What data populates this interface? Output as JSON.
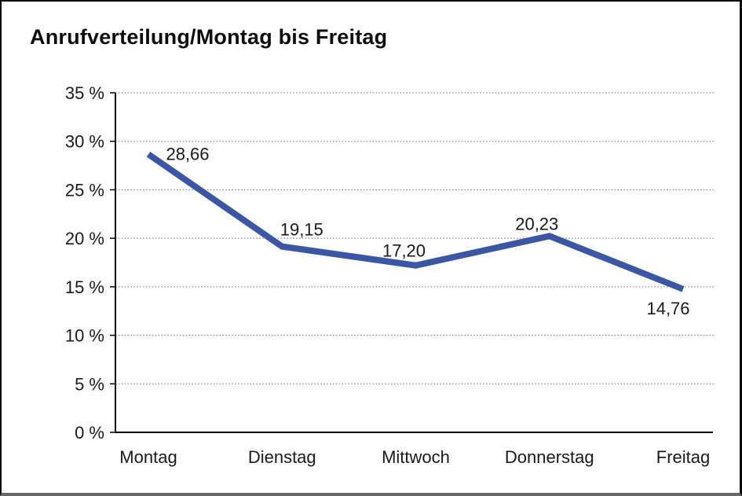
{
  "chart_data": {
    "type": "line",
    "title": "Anrufverteilung/Montag bis Freitag",
    "categories": [
      "Montag",
      "Dienstag",
      "Mittwoch",
      "Donnerstag",
      "Freitag"
    ],
    "values": [
      28.66,
      19.15,
      17.2,
      20.23,
      14.76
    ],
    "value_labels": [
      "28,66",
      "19,15",
      "17,20",
      "20,23",
      "14,76"
    ],
    "series": [
      {
        "name": "Anrufverteilung",
        "values": [
          28.66,
          19.15,
          17.2,
          20.23,
          14.76
        ]
      }
    ],
    "xlabel": "",
    "ylabel": "",
    "ylim": [
      0,
      35
    ],
    "y_ticks": [
      0,
      5,
      10,
      15,
      20,
      25,
      30,
      35
    ],
    "y_tick_labels": [
      "0 %",
      "5 %",
      "10 %",
      "15 %",
      "20 %",
      "25 %",
      "30 %",
      "35 %"
    ],
    "grid": "horizontal-dotted",
    "legend_position": "none",
    "colors": {
      "series_line": "#3a56a4",
      "axis": "#000000",
      "gridline": "#8a8a8a",
      "text": "#1a1a1a"
    }
  }
}
